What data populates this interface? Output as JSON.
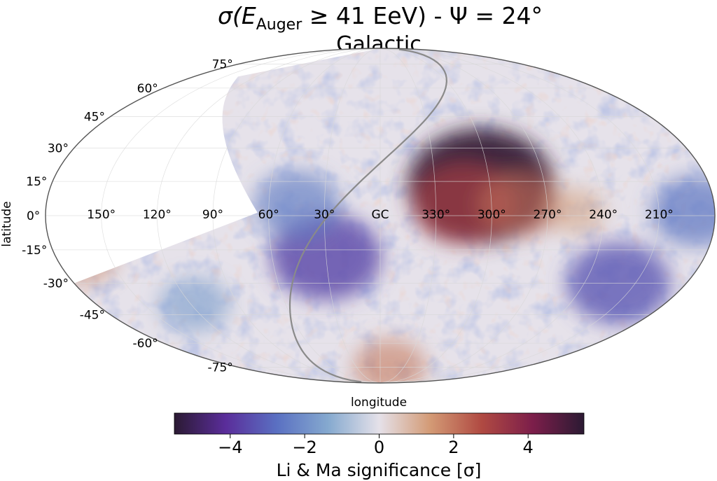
{
  "title": {
    "sigma": "σ(",
    "e": "E",
    "sub": "Auger",
    "rest": " ≥ 41 EeV) - Ψ = 24°"
  },
  "subtitle": "Galactic",
  "axes": {
    "xlabel": "longitude",
    "ylabel": "latitude"
  },
  "longitude_ticks": [
    {
      "label": "150°",
      "lon": 150
    },
    {
      "label": "120°",
      "lon": 120
    },
    {
      "label": "90°",
      "lon": 90
    },
    {
      "label": "60°",
      "lon": 60
    },
    {
      "label": "30°",
      "lon": 30
    },
    {
      "label": "GC",
      "lon": 0
    },
    {
      "label": "330°",
      "lon": -30
    },
    {
      "label": "300°",
      "lon": -60
    },
    {
      "label": "270°",
      "lon": -90
    },
    {
      "label": "240°",
      "lon": -120
    },
    {
      "label": "210°",
      "lon": -150
    }
  ],
  "latitude_ticks": [
    {
      "label": "75°",
      "lat": 75
    },
    {
      "label": "60°",
      "lat": 60
    },
    {
      "label": "45°",
      "lat": 45
    },
    {
      "label": "30°",
      "lat": 30
    },
    {
      "label": "15°",
      "lat": 15
    },
    {
      "label": "0°",
      "lat": 0
    },
    {
      "label": "-15°",
      "lat": -15
    },
    {
      "label": "-30°",
      "lat": -30
    },
    {
      "label": "-45°",
      "lat": -45
    },
    {
      "label": "-60°",
      "lat": -60
    },
    {
      "label": "-75°",
      "lat": -75
    }
  ],
  "colorbar": {
    "label": "Li & Ma significance [σ]",
    "min": -5.5,
    "max": 5.5,
    "ticks": [
      {
        "label": "−4",
        "value": -4
      },
      {
        "label": "−2",
        "value": -2
      },
      {
        "label": "0",
        "value": 0
      },
      {
        "label": "2",
        "value": 2
      },
      {
        "label": "4",
        "value": 4
      }
    ],
    "stops": [
      "#2b1a33",
      "#5a2d9a",
      "#5a70c2",
      "#85a9cf",
      "#e5e1e9",
      "#d39a75",
      "#b04a42",
      "#7c1e4a",
      "#2b1a33"
    ]
  },
  "sky_map": {
    "projection": "mollweide",
    "regions": [
      {
        "kind": "hotspot",
        "lon": -55,
        "lat": 13,
        "sigma": 5.3
      },
      {
        "kind": "hotspot",
        "lon": -45,
        "lat": 5,
        "sigma": 3.2
      },
      {
        "kind": "hotspot",
        "lon": -75,
        "lat": 5,
        "sigma": 2.2
      },
      {
        "kind": "hotspot",
        "lon": -105,
        "lat": 2,
        "sigma": 1.2
      },
      {
        "kind": "hotspot",
        "lon": -12,
        "lat": -75,
        "sigma": 1.8
      },
      {
        "kind": "hotspot",
        "lon": 165,
        "lat": -18,
        "sigma": 1.6
      },
      {
        "kind": "coldspot",
        "lon": 30,
        "lat": -18,
        "sigma": -3.6
      },
      {
        "kind": "coldspot",
        "lon": 45,
        "lat": 5,
        "sigma": -2.4
      },
      {
        "kind": "coldspot",
        "lon": -140,
        "lat": -30,
        "sigma": -3.3
      },
      {
        "kind": "coldspot",
        "lon": -170,
        "lat": 2,
        "sigma": -2.6
      },
      {
        "kind": "coldspot",
        "lon": 118,
        "lat": -40,
        "sigma": -1.7
      }
    ]
  },
  "colors": {
    "frame": "#555555",
    "grid": "#d8d8d8",
    "exposure_boundary": "#8a8a8a",
    "uncovered": "#ffffff"
  }
}
